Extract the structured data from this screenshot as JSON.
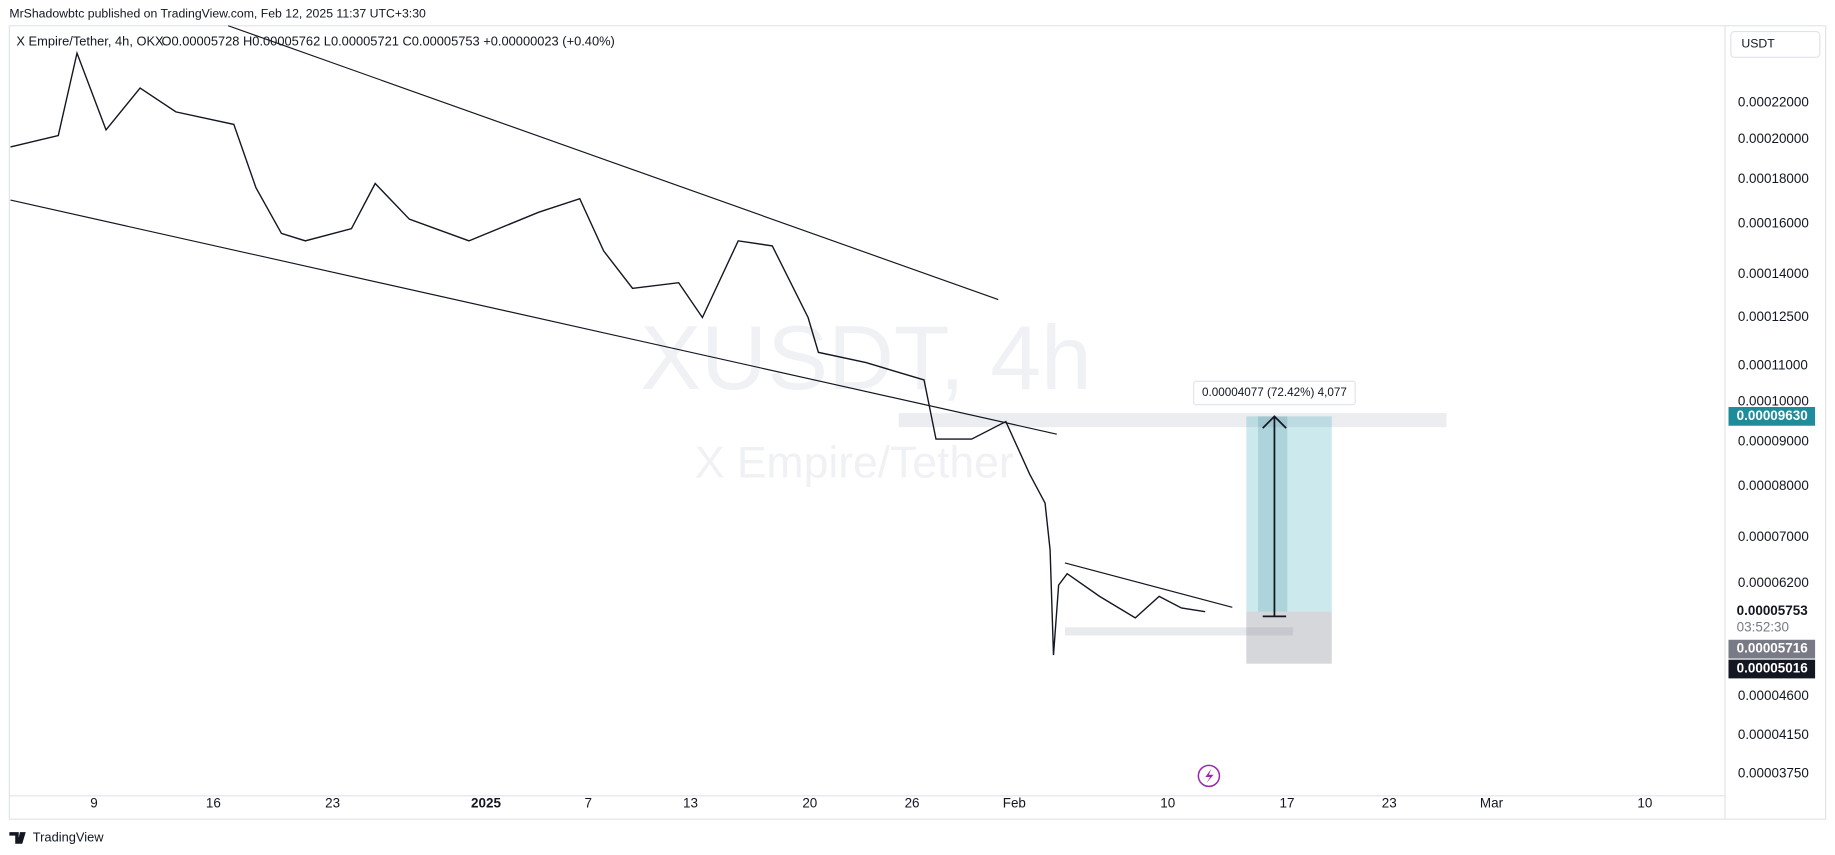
{
  "header": {
    "publisher_line": "MrShadowbtc published on TradingView.com, Feb 12, 2025 11:37 UTC+3:30"
  },
  "footer": {
    "brand": "TradingView"
  },
  "chart_data": {
    "type": "line",
    "symbol": "X Empire/Tether, 4h, OKX",
    "ohlc": "O0.00005728 H0.00005762 L0.00005721 C0.00005753 +0.00000023 (+0.40%)",
    "currency": "USDT",
    "watermark": "XUSDT, 4h",
    "watermark_subtitle": "X Empire/Tether",
    "annotation": "0.00004077 (72.42%) 4,077",
    "countdown": "03:52:30",
    "log_scale": true,
    "x": [
      -27.9,
      -25.1,
      -24.0,
      -22.3,
      -20.3,
      -18.2,
      -14.8,
      -13.5,
      -12.0,
      -10.6,
      -7.9,
      -6.5,
      -4.5,
      -1.0,
      3.1,
      5.5,
      6.9,
      8.6,
      11.3,
      12.7,
      14.8,
      16.8,
      18.9,
      19.5,
      22.3,
      25.7,
      26.4,
      28.5,
      30.5,
      31.9,
      32.8,
      33.1,
      33.3,
      33.6,
      34.1,
      36.0,
      38.1,
      39.5,
      40.8,
      42.2
    ],
    "series": [
      {
        "color": "#131722",
        "values": [
          0.000196,
          0.000202,
          0.000251,
          0.000205,
          0.000229,
          0.000215,
          0.000208,
          0.000176,
          0.000156,
          0.000153,
          0.000158,
          0.000178,
          0.000162,
          0.000153,
          0.000165,
          0.000171,
          0.000149,
          0.000135,
          0.000137,
          0.000125,
          0.000153,
          0.000151,
          0.000125,
          0.000114,
          0.000111,
          0.000106,
          9.07e-05,
          9.07e-05,
          9.5e-05,
          8.27e-05,
          7.66e-05,
          6.77e-05,
          5.13e-05,
          6.17e-05,
          6.36e-05,
          5.99e-05,
          5.66e-05,
          5.99e-05,
          5.81e-05,
          5.753e-05
        ]
      }
    ],
    "xlim": [
      -27.9,
      72.7
    ],
    "xticks": [
      {
        "value": -23,
        "label": "9"
      },
      {
        "value": -16,
        "label": "16"
      },
      {
        "value": -9,
        "label": "23"
      },
      {
        "value": 0,
        "label": "2025"
      },
      {
        "value": 6,
        "label": "7"
      },
      {
        "value": 12,
        "label": "13"
      },
      {
        "value": 19,
        "label": "20"
      },
      {
        "value": 25,
        "label": "26"
      },
      {
        "value": 31,
        "label": "Feb"
      },
      {
        "value": 40,
        "label": "10"
      },
      {
        "value": 47,
        "label": "17"
      },
      {
        "value": 53,
        "label": "23"
      },
      {
        "value": 59,
        "label": "Mar"
      },
      {
        "value": 68,
        "label": "10"
      }
    ],
    "ylim": [
      3.54e-05,
      0.000269
    ],
    "yticks": [
      {
        "value": 0.00022,
        "label": "0.00022000"
      },
      {
        "value": 0.0002,
        "label": "0.00020000"
      },
      {
        "value": 0.00018,
        "label": "0.00018000"
      },
      {
        "value": 0.00016,
        "label": "0.00016000"
      },
      {
        "value": 0.00014,
        "label": "0.00014000"
      },
      {
        "value": 0.000125,
        "label": "0.00012500"
      },
      {
        "value": 0.00011,
        "label": "0.00011000"
      },
      {
        "value": 0.0001,
        "label": "0.00010000"
      },
      {
        "value": 9e-05,
        "label": "0.00009000"
      },
      {
        "value": 8e-05,
        "label": "0.00008000"
      },
      {
        "value": 7e-05,
        "label": "0.00007000"
      },
      {
        "value": 6.2e-05,
        "label": "0.00006200"
      },
      {
        "value": 4.6e-05,
        "label": "0.00004600"
      },
      {
        "value": 4.15e-05,
        "label": "0.00004150"
      },
      {
        "value": 3.75e-05,
        "label": "0.00003750"
      }
    ],
    "price_labels": [
      {
        "value": 9.63e-05,
        "label": "0.00009630",
        "color": "#1e8c9b"
      },
      {
        "value": 5.753e-05,
        "label": "0.00005753",
        "color": "#ffffff"
      },
      {
        "value": 5.716e-05,
        "label": "0.00005716",
        "color": "#787b86"
      },
      {
        "value": 5.016e-05,
        "label": "0.00005016",
        "color": "#131722"
      }
    ]
  }
}
